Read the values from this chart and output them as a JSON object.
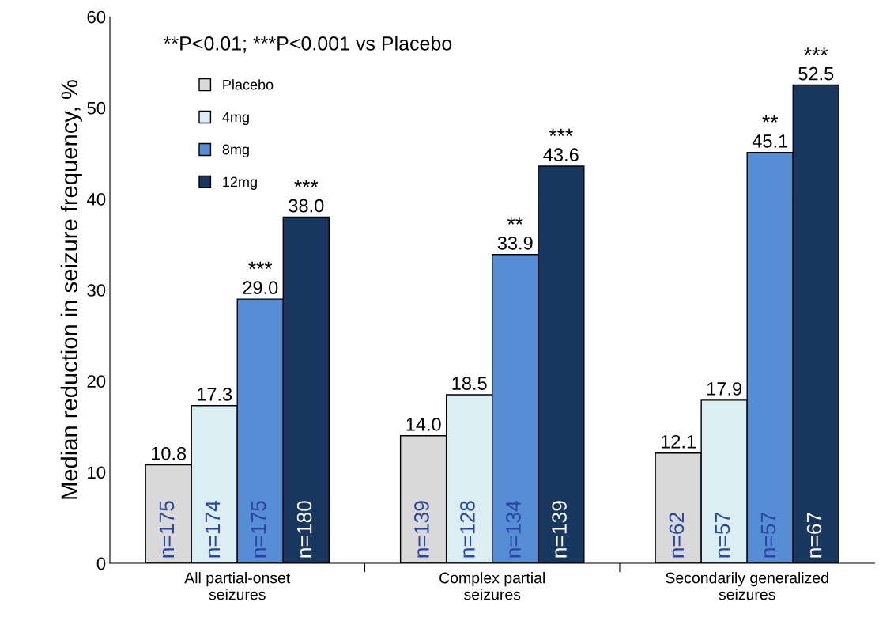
{
  "chart_data": {
    "type": "bar",
    "ylabel": "Median reduction in seizure frequency, %",
    "categories": [
      "All partial-onset\nseizures",
      "Complex partial\nseizures",
      "Secondarily generalized\nseizures"
    ],
    "series": [
      {
        "name": "Placebo",
        "color": "#d9d9d9",
        "values": [
          10.8,
          14.0,
          12.1
        ],
        "value_labels": [
          "10.8",
          "14.0",
          "12.1"
        ]
      },
      {
        "name": "4mg",
        "color": "#dbeef4",
        "values": [
          17.3,
          18.5,
          17.9
        ],
        "value_labels": [
          "17.3",
          "18.5",
          "17.9"
        ]
      },
      {
        "name": "8mg",
        "color": "#558ed5",
        "values": [
          29.0,
          33.9,
          45.1
        ],
        "value_labels": [
          "29.0",
          "33.9",
          "45.1"
        ]
      },
      {
        "name": "12mg",
        "color": "#17375e",
        "values": [
          38.0,
          43.6,
          52.5
        ],
        "value_labels": [
          "38.0",
          "43.6",
          "52.5"
        ]
      }
    ],
    "ylim": [
      0,
      60
    ],
    "yticks": [
      0,
      10,
      20,
      30,
      40,
      50,
      60
    ],
    "grid": false,
    "legend": "top left",
    "annotations": [
      "**P<0.01; ***P<0.001 vs Placebo",
      "***",
      "***",
      "**",
      "***",
      "**",
      "***",
      "n=175",
      "n=174",
      "n=175",
      "n=180",
      "n=139",
      "n=128",
      "n=134",
      "n=139",
      "n=62",
      "n=57",
      "n=57",
      "n=67"
    ]
  }
}
